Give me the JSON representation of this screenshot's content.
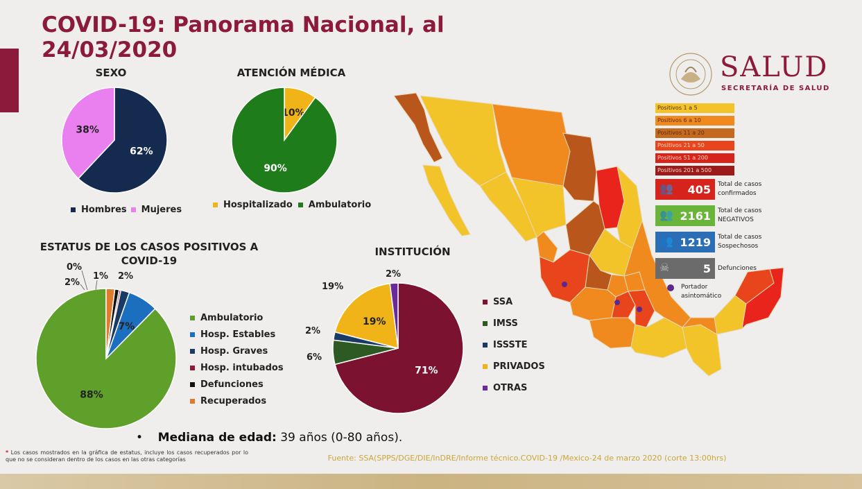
{
  "header": {
    "title_line1": "COVID-19: Panorama Nacional, al",
    "title_line2": "24/03/2020"
  },
  "brand": {
    "name": "SALUD",
    "subtitle": "SECRETARÍA DE SALUD",
    "seal_text": "ESTADOS UNIDOS MEXICANOS",
    "color": "#8b1a3b"
  },
  "chart_data": [
    {
      "id": "sexo",
      "type": "pie",
      "title": "SEXO",
      "series": [
        {
          "name": "Hombres",
          "value": 62,
          "label": "62%",
          "color": "#142a4f"
        },
        {
          "name": "Mujeres",
          "value": 38,
          "label": "38%",
          "color": "#ea80f0"
        }
      ]
    },
    {
      "id": "atencion",
      "type": "pie",
      "title": "ATENCIÓN MÉDICA",
      "series": [
        {
          "name": "Hospitalizado",
          "value": 10,
          "label": "10%",
          "color": "#f0b418"
        },
        {
          "name": "Ambulatorio",
          "value": 90,
          "label": "90%",
          "color": "#1e7d1a"
        }
      ]
    },
    {
      "id": "estatus",
      "type": "pie",
      "title": "ESTATUS DE LOS CASOS POSITIVOS A COVID-19",
      "series": [
        {
          "name": "Ambulatorio",
          "value": 88,
          "label": "88%",
          "color": "#5ea02a"
        },
        {
          "name": "Hosp. Estables",
          "value": 7,
          "label": "7%",
          "color": "#1c6fbf"
        },
        {
          "name": "Hosp. Graves",
          "value": 2,
          "label": "2%",
          "color": "#1a3a66"
        },
        {
          "name": "Hosp. intubados",
          "value": 0.4,
          "label": "0%",
          "color": "#8b1a3b"
        },
        {
          "name": "Defunciones",
          "value": 1,
          "label": "1%",
          "color": "#111111"
        },
        {
          "name": "Recuperados",
          "value": 2,
          "label": "2%",
          "color": "#e07a2c"
        }
      ]
    },
    {
      "id": "institucion",
      "type": "pie",
      "title": "INSTITUCIÓN",
      "series": [
        {
          "name": "SSA",
          "value": 71,
          "label": "71%",
          "color": "#7a1230"
        },
        {
          "name": "IMSS",
          "value": 6,
          "label": "6%",
          "color": "#2d5a22"
        },
        {
          "name": "ISSSTE",
          "value": 2,
          "label": "2%",
          "color": "#1a3a66"
        },
        {
          "name": "PRIVADOS",
          "value": 19,
          "label": "19%",
          "color": "#f0b418"
        },
        {
          "name": "OTRAS",
          "value": 2,
          "label": "2%",
          "color": "#6b2a9a"
        }
      ]
    }
  ],
  "map_legend": [
    {
      "label": "Positivos 1 a 5",
      "color": "#f3c32a"
    },
    {
      "label": "Positivos 6 a 10",
      "color": "#f08a1e"
    },
    {
      "label": "Positivos 11 a 20",
      "color": "#c46a1e"
    },
    {
      "label": "Positivos 21 a 50",
      "color": "#e8451d"
    },
    {
      "label": "Positivos 51 a 200",
      "color": "#d6241d"
    },
    {
      "label": "Positivos 201 a 500",
      "color": "#9c1a1a"
    }
  ],
  "stats": [
    {
      "value": "405",
      "label1": "Total de casos",
      "label2": "confirmados",
      "color": "#d6241d",
      "icon": "people-icon"
    },
    {
      "value": "2161",
      "label1": "Total de casos",
      "label2": "NEGATIVOS",
      "color": "#6bb43a",
      "icon": "people-icon"
    },
    {
      "value": "1219",
      "label1": "Total de casos",
      "label2": "Sospechosos",
      "color": "#2a6fb5",
      "icon": "people-icon"
    },
    {
      "value": "5",
      "label1": "Defunciones",
      "label2": "",
      "color": "#6b6b6b",
      "icon": "skull-icon"
    }
  ],
  "asymptomatic": {
    "label1": "Portador",
    "label2": "asintomático",
    "color": "#5b2a8a"
  },
  "median": {
    "bullet": "•",
    "label": "Mediana de edad:",
    "value": "39 años (0-80 años)."
  },
  "footnote": {
    "mark": "*",
    "text": "Los casos mostrados en la gráfica de estatus, incluye los casos recuperados por lo que no se consideran dentro de los casos en las otras categorías"
  },
  "source": "Fuente: SSA(SPPS/DGE/DIE/InDRE/Informe técnico.COVID-19 /Mexico-24 de marzo 2020 (corte 13:00hrs)"
}
